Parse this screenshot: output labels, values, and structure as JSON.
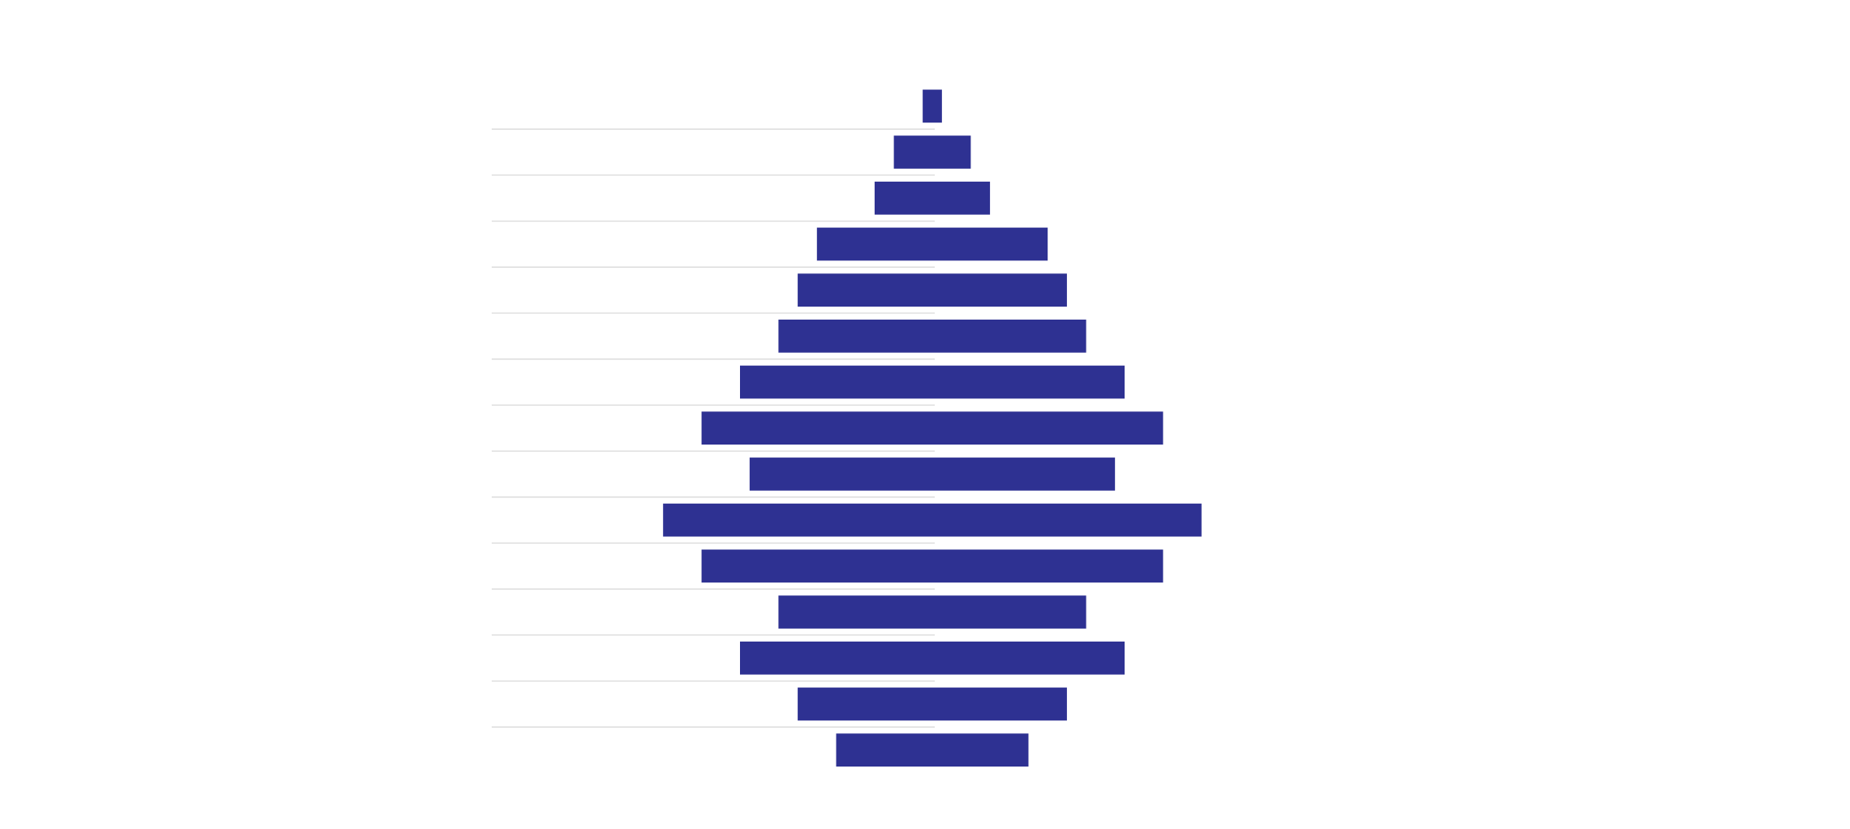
{
  "chart_data": {
    "type": "funnel",
    "categories": [
      null,
      null,
      null,
      null,
      null,
      null,
      null,
      null,
      null,
      null,
      null,
      null,
      null,
      null,
      null
    ],
    "values": [
      1,
      4,
      6,
      12,
      14,
      16,
      20,
      24,
      19,
      28,
      24,
      16,
      20,
      14,
      10
    ],
    "color": "#2e3192",
    "grid": true
  }
}
